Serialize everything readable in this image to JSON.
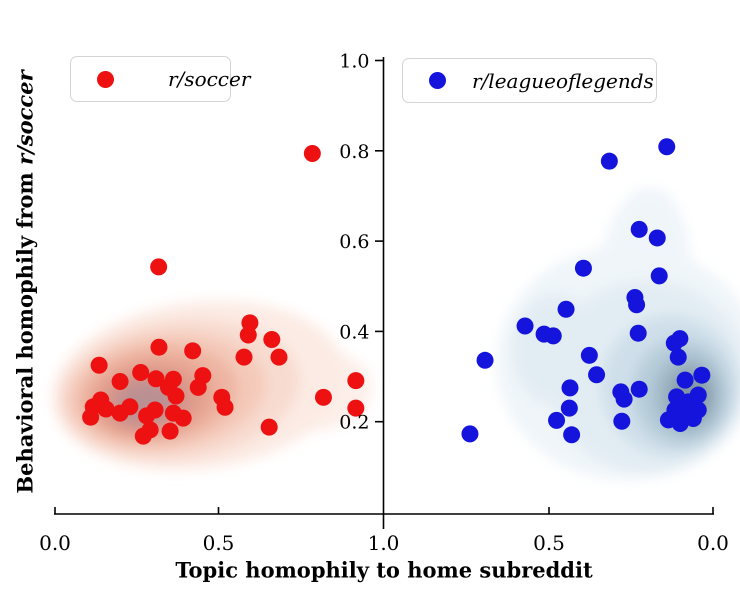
{
  "figure": {
    "xlabel": "Topic homophily to home subreddit",
    "ylabel_prefix": "Behavioral homophily from ",
    "ylabel_italic": "r/soccer",
    "background": "#ffffff",
    "axis_color": "#000000"
  },
  "legends": {
    "soccer": {
      "label": "r/soccer",
      "marker": "red-dot-icon",
      "color": "#ee1111"
    },
    "lol": {
      "label": "r/leagueoflegends",
      "marker": "blue-dot-icon",
      "color": "#1414dd"
    }
  },
  "chart_data": {
    "type": "scatter",
    "title": "",
    "xlabel": "Topic homophily to home subreddit",
    "ylabel": "Behavioral homophily from r/soccer",
    "grid": false,
    "y_axis": {
      "range": [
        0.0,
        1.0
      ],
      "ticks": [
        "0.2",
        "0.4",
        "0.6",
        "0.8",
        "1.0"
      ]
    },
    "shared_center_tick_label": "1.0",
    "panels": [
      {
        "name": "r/soccer",
        "side": "left",
        "color": "#ee1111",
        "x_axis": {
          "range": [
            0.0,
            1.0
          ],
          "reversed": false,
          "tick_labels": [
            "0.0",
            "0.5"
          ]
        },
        "points": [
          [
            0.787,
            0.794
          ],
          [
            0.317,
            0.543
          ],
          [
            0.135,
            0.325
          ],
          [
            0.318,
            0.365
          ],
          [
            0.421,
            0.357
          ],
          [
            0.199,
            0.289
          ],
          [
            0.262,
            0.309
          ],
          [
            0.309,
            0.295
          ],
          [
            0.362,
            0.294
          ],
          [
            0.452,
            0.302
          ],
          [
            0.438,
            0.276
          ],
          [
            0.347,
            0.276
          ],
          [
            0.37,
            0.257
          ],
          [
            0.14,
            0.248
          ],
          [
            0.117,
            0.233
          ],
          [
            0.156,
            0.228
          ],
          [
            0.109,
            0.21
          ],
          [
            0.199,
            0.219
          ],
          [
            0.229,
            0.233
          ],
          [
            0.28,
            0.213
          ],
          [
            0.306,
            0.226
          ],
          [
            0.362,
            0.219
          ],
          [
            0.392,
            0.208
          ],
          [
            0.291,
            0.182
          ],
          [
            0.27,
            0.168
          ],
          [
            0.352,
            0.179
          ],
          [
            0.51,
            0.254
          ],
          [
            0.52,
            0.232
          ],
          [
            0.596,
            0.419
          ],
          [
            0.591,
            0.392
          ],
          [
            0.663,
            0.382
          ],
          [
            0.578,
            0.343
          ],
          [
            0.685,
            0.343
          ],
          [
            0.821,
            0.254
          ],
          [
            0.92,
            0.291
          ],
          [
            0.92,
            0.23
          ],
          [
            0.655,
            0.188
          ]
        ],
        "kde_levels": [
          {
            "cx": 0.8,
            "cy": 0.27,
            "rx": 0.17,
            "ry": 0.09,
            "rot": -4,
            "fill": "#fdefea"
          },
          {
            "cx": 0.44,
            "cy": 0.28,
            "rx": 0.45,
            "ry": 0.185,
            "rot": -7,
            "fill": "#fcebe4"
          },
          {
            "cx": 0.38,
            "cy": 0.27,
            "rx": 0.37,
            "ry": 0.155,
            "rot": -7,
            "fill": "#f8dbd0"
          },
          {
            "cx": 0.34,
            "cy": 0.265,
            "rx": 0.305,
            "ry": 0.13,
            "rot": -7,
            "fill": "#f4c9b9"
          },
          {
            "cx": 0.315,
            "cy": 0.26,
            "rx": 0.245,
            "ry": 0.108,
            "rot": -7,
            "fill": "#edb4a1"
          },
          {
            "cx": 0.295,
            "cy": 0.252,
            "rx": 0.19,
            "ry": 0.088,
            "rot": -7,
            "fill": "#e5a18e"
          },
          {
            "cx": 0.285,
            "cy": 0.247,
            "rx": 0.14,
            "ry": 0.068,
            "rot": -7,
            "fill": "#d5958b"
          },
          {
            "cx": 0.28,
            "cy": 0.242,
            "rx": 0.09,
            "ry": 0.048,
            "rot": -7,
            "fill": "#bb9093"
          }
        ]
      },
      {
        "name": "r/leagueoflegends",
        "side": "right",
        "color": "#1414dd",
        "x_axis": {
          "range": [
            1.0,
            0.0
          ],
          "reversed": true,
          "tick_labels": [
            "0.5",
            "0.0"
          ]
        },
        "points": [
          [
            0.141,
            0.809
          ],
          [
            0.316,
            0.777
          ],
          [
            0.225,
            0.626
          ],
          [
            0.17,
            0.607
          ],
          [
            0.395,
            0.54
          ],
          [
            0.164,
            0.523
          ],
          [
            0.238,
            0.475
          ],
          [
            0.448,
            0.449
          ],
          [
            0.233,
            0.459
          ],
          [
            0.573,
            0.412
          ],
          [
            0.515,
            0.394
          ],
          [
            0.487,
            0.39
          ],
          [
            0.228,
            0.396
          ],
          [
            0.695,
            0.336
          ],
          [
            0.377,
            0.347
          ],
          [
            0.118,
            0.374
          ],
          [
            0.101,
            0.384
          ],
          [
            0.106,
            0.343
          ],
          [
            0.355,
            0.304
          ],
          [
            0.436,
            0.275
          ],
          [
            0.281,
            0.266
          ],
          [
            0.271,
            0.25
          ],
          [
            0.225,
            0.272
          ],
          [
            0.438,
            0.23
          ],
          [
            0.477,
            0.203
          ],
          [
            0.431,
            0.171
          ],
          [
            0.278,
            0.201
          ],
          [
            0.741,
            0.173
          ],
          [
            0.085,
            0.292
          ],
          [
            0.034,
            0.303
          ],
          [
            0.111,
            0.255
          ],
          [
            0.075,
            0.244
          ],
          [
            0.045,
            0.259
          ],
          [
            0.116,
            0.226
          ],
          [
            0.08,
            0.222
          ],
          [
            0.045,
            0.226
          ],
          [
            0.136,
            0.204
          ],
          [
            0.1,
            0.196
          ],
          [
            0.06,
            0.207
          ]
        ],
        "kde_levels": [
          {
            "cx": 0.21,
            "cy": 0.52,
            "rx": 0.14,
            "ry": 0.2,
            "rot": 5,
            "fill": "#f0f5fa"
          },
          {
            "cx": 0.26,
            "cy": 0.33,
            "rx": 0.4,
            "ry": 0.26,
            "rot": 0,
            "fill": "#eff5f9"
          },
          {
            "cx": 0.2,
            "cy": 0.3,
            "rx": 0.3,
            "ry": 0.21,
            "rot": 0,
            "fill": "#e2ecf3"
          },
          {
            "cx": 0.48,
            "cy": 0.36,
            "rx": 0.13,
            "ry": 0.12,
            "rot": 0,
            "fill": "#e2ecf3"
          },
          {
            "cx": 0.13,
            "cy": 0.28,
            "rx": 0.21,
            "ry": 0.155,
            "rot": 0,
            "fill": "#cfdfea"
          },
          {
            "cx": 0.095,
            "cy": 0.265,
            "rx": 0.15,
            "ry": 0.12,
            "rot": 0,
            "fill": "#b8cdda"
          },
          {
            "cx": 0.078,
            "cy": 0.26,
            "rx": 0.105,
            "ry": 0.09,
            "rot": 0,
            "fill": "#a2b9c8"
          },
          {
            "cx": 0.07,
            "cy": 0.258,
            "rx": 0.068,
            "ry": 0.062,
            "rot": 0,
            "fill": "#8da2b0"
          },
          {
            "cx": 0.066,
            "cy": 0.256,
            "rx": 0.036,
            "ry": 0.036,
            "rot": 0,
            "fill": "#7e929e"
          }
        ]
      }
    ]
  }
}
